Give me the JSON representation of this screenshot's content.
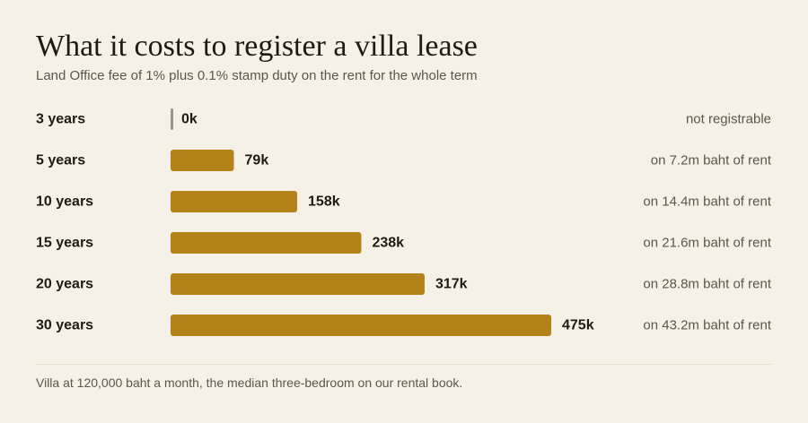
{
  "header": {
    "title": "What it costs to register a villa lease",
    "subtitle": "Land Office fee of 1% plus 0.1% stamp duty on the rent for the whole term"
  },
  "footer": {
    "note": "Villa at 120,000 baht a month, the median three-bedroom on our rental book."
  },
  "colors": {
    "bar": "#b38218",
    "zero_bar": "#9a948a",
    "background": "#f6f1e7"
  },
  "chart_data": {
    "type": "bar",
    "orientation": "horizontal",
    "title": "What it costs to register a villa lease",
    "subtitle": "Land Office fee of 1% plus 0.1% stamp duty on the rent for the whole term",
    "xlabel": "",
    "ylabel": "",
    "grid": false,
    "legend": "none",
    "unit": "thousand baht",
    "xlim": [
      0,
      475
    ],
    "categories": [
      "3 years",
      "5 years",
      "10 years",
      "15 years",
      "20 years",
      "30 years"
    ],
    "values": [
      0,
      79,
      158,
      238,
      317,
      475
    ],
    "value_labels": [
      "0k",
      "79k",
      "158k",
      "238k",
      "317k",
      "475k"
    ],
    "notes": [
      "not registrable",
      "on 7.2m baht of rent",
      "on 14.4m baht of rent",
      "on 21.6m baht of rent",
      "on 28.8m baht of rent",
      "on 43.2m baht of rent"
    ]
  }
}
